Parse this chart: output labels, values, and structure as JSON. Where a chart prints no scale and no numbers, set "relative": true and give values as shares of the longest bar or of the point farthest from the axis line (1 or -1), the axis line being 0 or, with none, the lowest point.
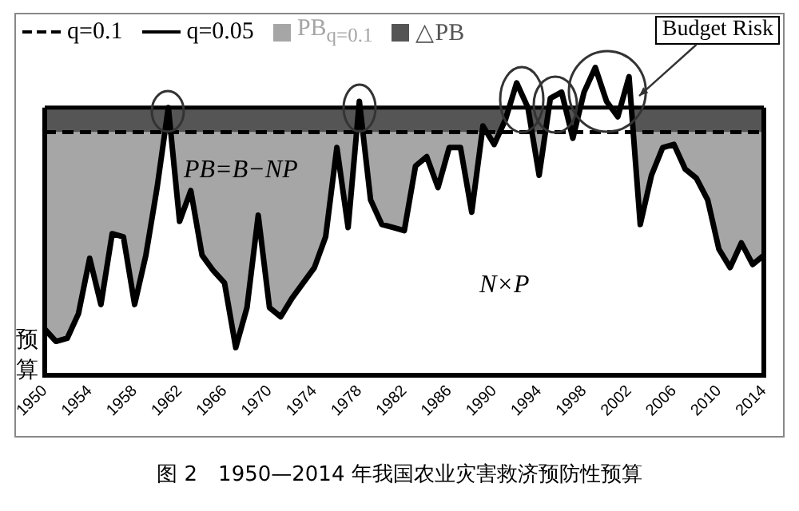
{
  "chart_data": {
    "type": "area",
    "title": "图 2　1950—2014 年我国农业灾害救济预防性预算",
    "ylabel": "预算",
    "relative": true,
    "legend": "top",
    "marker": "none",
    "xlim": [
      1950,
      2014
    ],
    "xticks": [
      1950,
      1954,
      1958,
      1962,
      1966,
      1970,
      1974,
      1978,
      1982,
      1986,
      1990,
      1994,
      1998,
      2002,
      2006,
      2010,
      2014
    ],
    "x": [
      1950,
      1951,
      1952,
      1953,
      1954,
      1955,
      1956,
      1957,
      1958,
      1959,
      1960,
      1961,
      1962,
      1963,
      1964,
      1965,
      1966,
      1967,
      1968,
      1969,
      1970,
      1971,
      1972,
      1973,
      1974,
      1975,
      1976,
      1977,
      1978,
      1979,
      1980,
      1981,
      1982,
      1983,
      1984,
      1985,
      1986,
      1987,
      1988,
      1989,
      1990,
      1991,
      1992,
      1993,
      1994,
      1995,
      1996,
      1997,
      1998,
      1999,
      2000,
      2001,
      2002,
      2003,
      2004,
      2005,
      2006,
      2007,
      2008,
      2009,
      2010,
      2011,
      2012,
      2013,
      2014
    ],
    "series": [
      {
        "color": "#ffffff",
        "values": [
          0.15,
          0.11,
          0.12,
          0.2,
          0.38,
          0.23,
          0.46,
          0.45,
          0.23,
          0.39,
          0.61,
          0.87,
          0.5,
          0.6,
          0.39,
          0.34,
          0.3,
          0.09,
          0.22,
          0.52,
          0.22,
          0.19,
          0.25,
          0.3,
          0.35,
          0.45,
          0.74,
          0.48,
          0.89,
          0.57,
          0.49,
          0.48,
          0.47,
          0.68,
          0.71,
          0.61,
          0.74,
          0.74,
          0.53,
          0.81,
          0.75,
          0.83,
          0.95,
          0.87,
          0.65,
          0.9,
          0.92,
          0.77,
          0.92,
          1,
          0.89,
          0.84,
          0.97,
          0.49,
          0.65,
          0.74,
          0.75,
          0.67,
          0.64,
          0.57,
          0.41,
          0.35,
          0.43,
          0.36,
          0.39
        ]
      },
      {
        "type": "line",
        "name": "q=0.1",
        "color": "#000000",
        "line_style": "dashed",
        "values": [
          0.79,
          0.79,
          0.79,
          0.79,
          0.79,
          0.79,
          0.79,
          0.79,
          0.79,
          0.79,
          0.79,
          0.79,
          0.79,
          0.79,
          0.79,
          0.79,
          0.79,
          0.79,
          0.79,
          0.79,
          0.79,
          0.79,
          0.79,
          0.79,
          0.79,
          0.79,
          0.79,
          0.79,
          0.79,
          0.79,
          0.79,
          0.79,
          0.79,
          0.79,
          0.79,
          0.79,
          0.79,
          0.79,
          0.79,
          0.79,
          0.79,
          0.79,
          0.79,
          0.79,
          0.79,
          0.79,
          0.79,
          0.79,
          0.79,
          0.79,
          0.79,
          0.79,
          0.79,
          0.79,
          0.79,
          0.79,
          0.79,
          0.79,
          0.79,
          0.79,
          0.79,
          0.79,
          0.79,
          0.79,
          0.79
        ]
      },
      {
        "type": "line",
        "name": "q=0.05",
        "color": "#000000",
        "line_style": "solid",
        "values": [
          0.87,
          0.87,
          0.87,
          0.87,
          0.87,
          0.87,
          0.87,
          0.87,
          0.87,
          0.87,
          0.87,
          0.87,
          0.87,
          0.87,
          0.87,
          0.87,
          0.87,
          0.87,
          0.87,
          0.87,
          0.87,
          0.87,
          0.87,
          0.87,
          0.87,
          0.87,
          0.87,
          0.87,
          0.87,
          0.87,
          0.87,
          0.87,
          0.87,
          0.87,
          0.87,
          0.87,
          0.87,
          0.87,
          0.87,
          0.87,
          0.87,
          0.87,
          0.87,
          0.87,
          0.87,
          0.87,
          0.87,
          0.87,
          0.87,
          0.87,
          0.87,
          0.87,
          0.87,
          0.87,
          0.87,
          0.87,
          0.87,
          0.87,
          0.87,
          0.87,
          0.87,
          0.87,
          0.87,
          0.87,
          0.87
        ]
      }
    ],
    "bands": [
      {
        "axis": "y",
        "from": 0,
        "to": 0.79,
        "label": "PB$_{q=0.1}$",
        "color": "#a6a6a6"
      },
      {
        "axis": "y",
        "from": 0.79,
        "to": 0.87,
        "label": "△PB",
        "color": "#555555"
      }
    ],
    "annotations": [
      {
        "text": "Budget Risk",
        "x": 2002,
        "y": 0.97
      },
      "PB=B−NP",
      "N×P"
    ]
  }
}
